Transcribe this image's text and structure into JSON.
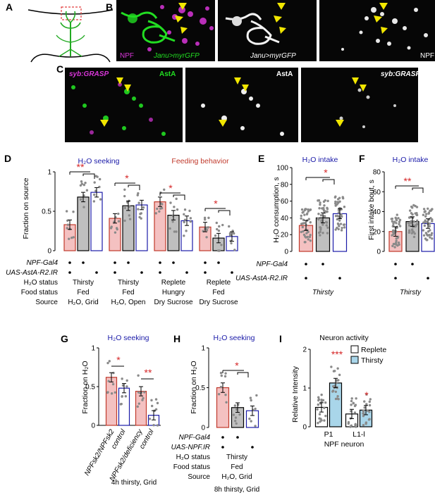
{
  "panels": {
    "A": {
      "label": "A"
    },
    "B": {
      "label": "B",
      "images": [
        {
          "left": "NPF",
          "right": "Janu>myrGFP"
        },
        {
          "center": "Janu>myrGFP"
        },
        {
          "right": "NPF"
        }
      ]
    },
    "C": {
      "label": "C",
      "images": [
        {
          "left": "syb:GRASP",
          "right": "AstA"
        },
        {
          "right": "AstA"
        },
        {
          "right": "syb:GRASP"
        }
      ]
    },
    "D": {
      "label": "D",
      "title_water": "H₂O seeking",
      "title_feed": "Feeding behavior",
      "ylabel": "Fraction on source",
      "rows": {
        "gal4": "NPF-Gal4",
        "uas": "UAS-AstA-R2.IR",
        "h2o": "H₂O status",
        "food": "Food status",
        "source": "Source"
      },
      "groups": [
        {
          "h2o": "Thirsty",
          "food": "Fed",
          "source": "H₂O, Grid",
          "star": "**"
        },
        {
          "h2o": "Thirsty",
          "food": "Fed",
          "source": "H₂O, Open",
          "star": "*"
        },
        {
          "h2o": "Replete",
          "food": "Hungry",
          "source": "Dry Sucrose",
          "star": "*"
        },
        {
          "h2o": "Replete",
          "food": "Fed",
          "source": "Dry Sucrose",
          "star": "*"
        }
      ]
    },
    "E": {
      "label": "E",
      "title": "H₂O intake",
      "ylabel": "H₂O consumption, s",
      "rows": {
        "gal4": "NPF-Gal4",
        "uas": "UAS-AstA-R2.IR"
      },
      "footer": "Thirsty",
      "star": "*"
    },
    "F": {
      "label": "F",
      "title": "H₂O intake",
      "ylabel": "First intake bout, s",
      "footer": "Thirsty",
      "star": "**"
    },
    "G": {
      "label": "G",
      "title": "H₂O seeking",
      "ylabel": "Fraction on H₂O",
      "xlabels": [
        "NPFsk2/NPFsk2",
        "control",
        "NPFsk2/deficiency",
        "control"
      ],
      "footer": "4h thirsty, Grid",
      "stars": [
        "*",
        "**"
      ]
    },
    "H": {
      "label": "H",
      "title": "H₂O seeking",
      "ylabel": "Fraction on H₂O",
      "rows": {
        "gal4": "NPF-Gal4",
        "uas": "UAS-NPF.IR",
        "h2o": "H₂O status",
        "food": "Food status",
        "source": "Source"
      },
      "cells": {
        "h2o": "Thirsty",
        "food": "Fed",
        "source": "H₂O, Grid"
      },
      "footer": "8h thirsty, Grid",
      "star": "*"
    },
    "I": {
      "label": "I",
      "title": "Neuron activity",
      "ylabel": "Relative Intensity",
      "legend": [
        "Replete",
        "Thirsty"
      ],
      "xlabels": [
        "P1",
        "L1-l"
      ],
      "xtitle": "NPF neuron",
      "stars": [
        "***",
        "*"
      ]
    }
  },
  "chart_data": [
    {
      "type": "bar",
      "panel": "D",
      "ylim": [
        0,
        1
      ],
      "yticks": [
        "0",
        "0.5",
        "1"
      ],
      "groups": [
        {
          "values": [
            0.33,
            0.68,
            0.74
          ]
        },
        {
          "values": [
            0.41,
            0.57,
            0.58
          ]
        },
        {
          "values": [
            0.62,
            0.45,
            0.38
          ]
        },
        {
          "values": [
            0.3,
            0.16,
            0.18
          ]
        }
      ]
    },
    {
      "type": "bar",
      "panel": "E",
      "ylim": [
        0,
        100
      ],
      "yticks": [
        "0",
        "20",
        "40",
        "60",
        "80",
        "100"
      ],
      "values": [
        31,
        40,
        45
      ]
    },
    {
      "type": "bar",
      "panel": "F",
      "ylim": [
        0,
        80
      ],
      "yticks": [
        "0",
        "20",
        "40",
        "60",
        "80"
      ],
      "values": [
        20,
        30,
        28
      ]
    },
    {
      "type": "bar",
      "panel": "G",
      "ylim": [
        0,
        1
      ],
      "yticks": [
        "0",
        "0.5",
        "1"
      ],
      "values": [
        0.62,
        0.48,
        0.44,
        0.13
      ]
    },
    {
      "type": "bar",
      "panel": "H",
      "ylim": [
        0,
        1
      ],
      "yticks": [
        "0",
        "0.5",
        "1"
      ],
      "values": [
        0.5,
        0.25,
        0.21
      ]
    },
    {
      "type": "bar",
      "panel": "I",
      "ylim": [
        0,
        2
      ],
      "yticks": [
        "0",
        "1",
        "2"
      ],
      "categories": [
        "P1",
        "L1-l"
      ],
      "series": [
        {
          "name": "Replete",
          "values": [
            0.5,
            0.33
          ]
        },
        {
          "name": "Thirsty",
          "values": [
            1.13,
            0.43
          ]
        }
      ]
    }
  ],
  "colors": {
    "pink": "#f4c1c1",
    "grey": "#bfbfbf",
    "white": "#ffffff",
    "blue": "#1a1aa8",
    "red": "#c0392b",
    "lightblue": "#a9d6ea",
    "green": "#22dd22",
    "magenta": "#d936d9"
  }
}
